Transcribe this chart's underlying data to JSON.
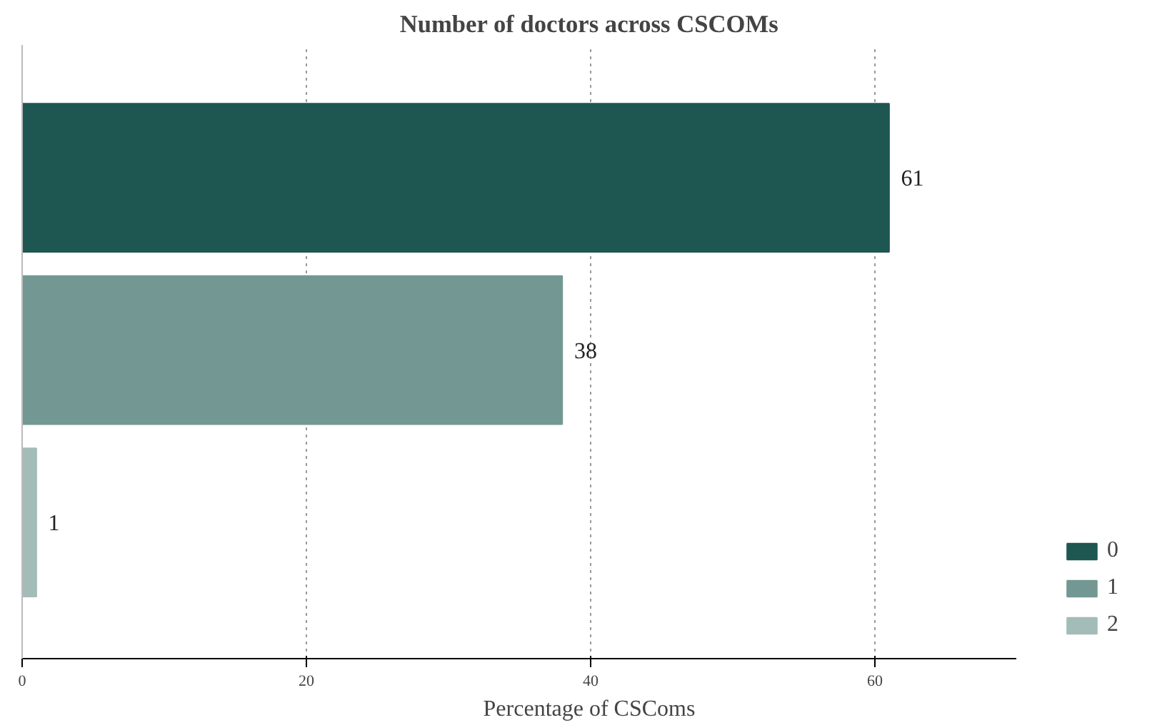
{
  "chart_data": {
    "type": "bar",
    "orientation": "horizontal",
    "stacked": true,
    "title": "Number of doctors across CSCOMs",
    "xlabel": "Percentage of CSComs",
    "categories": [
      null,
      null,
      null
    ],
    "series": [
      {
        "name": "0",
        "color": "#1e5752",
        "values": [
          61,
          null,
          null
        ]
      },
      {
        "name": "1",
        "color": "#739893",
        "values": [
          null,
          38,
          null
        ]
      },
      {
        "name": "2",
        "color": "#a3bcb8",
        "values": [
          null,
          null,
          1
        ]
      }
    ],
    "xlim": [
      0,
      70
    ],
    "xticks": [
      0,
      20,
      40,
      60
    ],
    "grid": "x",
    "tick_labels": "x",
    "legend": "bottom right",
    "data_labels": true
  }
}
